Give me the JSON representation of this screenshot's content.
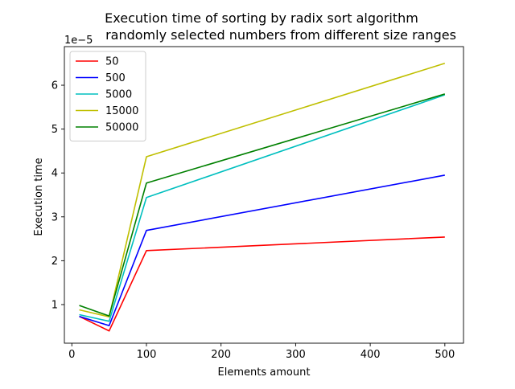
{
  "chart_data": {
    "type": "line",
    "title_line1": "Execution time of sorting by radix sort algorithm",
    "title_line2": "randomly selected numbers from different size ranges",
    "xlabel": "Elements amount",
    "ylabel": "Execution time",
    "y_offset_text": "1e−5",
    "x": [
      10,
      50,
      100,
      500
    ],
    "xlim": [
      -10,
      525
    ],
    "ylim": [
      0.12,
      6.88
    ],
    "y_scale_note": "values in units of 1e-5",
    "xticks": [
      0,
      100,
      200,
      300,
      400,
      500
    ],
    "yticks": [
      1,
      2,
      3,
      4,
      5,
      6
    ],
    "grid": false,
    "legend_position": "upper-left",
    "series": [
      {
        "name": "50",
        "color": "#ff0000",
        "values": [
          0.73,
          0.4,
          2.23,
          2.54
        ]
      },
      {
        "name": "500",
        "color": "#0000ff",
        "values": [
          0.73,
          0.52,
          2.69,
          3.95
        ]
      },
      {
        "name": "5000",
        "color": "#00bfbf",
        "values": [
          0.77,
          0.62,
          3.44,
          5.78
        ]
      },
      {
        "name": "15000",
        "color": "#bfbf00",
        "values": [
          0.88,
          0.72,
          4.37,
          6.5
        ]
      },
      {
        "name": "50000",
        "color": "#008000",
        "values": [
          0.98,
          0.74,
          3.77,
          5.8
        ]
      }
    ]
  }
}
